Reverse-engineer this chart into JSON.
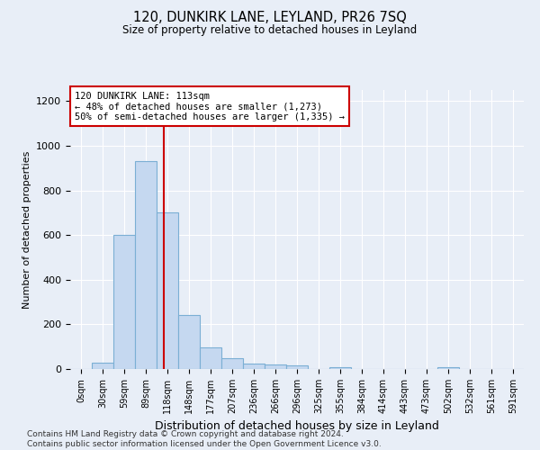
{
  "title": "120, DUNKIRK LANE, LEYLAND, PR26 7SQ",
  "subtitle": "Size of property relative to detached houses in Leyland",
  "xlabel": "Distribution of detached houses by size in Leyland",
  "ylabel": "Number of detached properties",
  "bins": [
    "0sqm",
    "30sqm",
    "59sqm",
    "89sqm",
    "118sqm",
    "148sqm",
    "177sqm",
    "207sqm",
    "236sqm",
    "266sqm",
    "296sqm",
    "325sqm",
    "355sqm",
    "384sqm",
    "414sqm",
    "443sqm",
    "473sqm",
    "502sqm",
    "532sqm",
    "561sqm",
    "591sqm"
  ],
  "values": [
    0,
    30,
    600,
    930,
    700,
    240,
    95,
    50,
    25,
    20,
    15,
    0,
    8,
    0,
    0,
    0,
    0,
    8,
    0,
    0,
    0
  ],
  "bar_color": "#c5d8f0",
  "bar_edge_color": "#7bafd4",
  "property_line_x": 3.83,
  "property_line_color": "#cc0000",
  "annotation_text": "120 DUNKIRK LANE: 113sqm\n← 48% of detached houses are smaller (1,273)\n50% of semi-detached houses are larger (1,335) →",
  "annotation_box_color": "#ffffff",
  "annotation_box_edge": "#cc0000",
  "ylim": [
    0,
    1250
  ],
  "yticks": [
    0,
    200,
    400,
    600,
    800,
    1000,
    1200
  ],
  "footer_text": "Contains HM Land Registry data © Crown copyright and database right 2024.\nContains public sector information licensed under the Open Government Licence v3.0.",
  "background_color": "#e8eef7",
  "grid_color": "#ffffff"
}
